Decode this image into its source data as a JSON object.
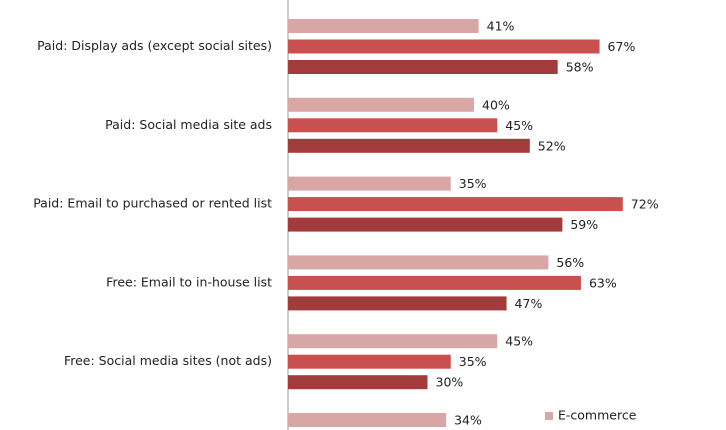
{
  "chart_data": {
    "type": "hbar",
    "categories": [
      "Paid:  Display ads (except social sites)",
      "Paid:  Social media site ads",
      "Paid:  Email to purchased or rented list",
      "Free:  Email to in-house list",
      "Free:  Social media sites (not ads)",
      null
    ],
    "series": [
      {
        "name": "E-commerce",
        "color": "#d9a6a6",
        "values": [
          41,
          40,
          35,
          56,
          45,
          34
        ],
        "value_labels": [
          "41%",
          "40%",
          "35%",
          "56%",
          "45%",
          "34%"
        ]
      },
      {
        "color": "#c8504f",
        "values": [
          67,
          45,
          72,
          63,
          35,
          null
        ],
        "value_labels": [
          "67%",
          "45%",
          "72%",
          "63%",
          "35%",
          null
        ]
      },
      {
        "color": "#a23b3c",
        "values": [
          58,
          52,
          59,
          47,
          30,
          null
        ],
        "value_labels": [
          "58%",
          "52%",
          "59%",
          "47%",
          "30%",
          null
        ]
      }
    ],
    "xlim": [
      0,
      100
    ],
    "legend": "bottom-right"
  }
}
